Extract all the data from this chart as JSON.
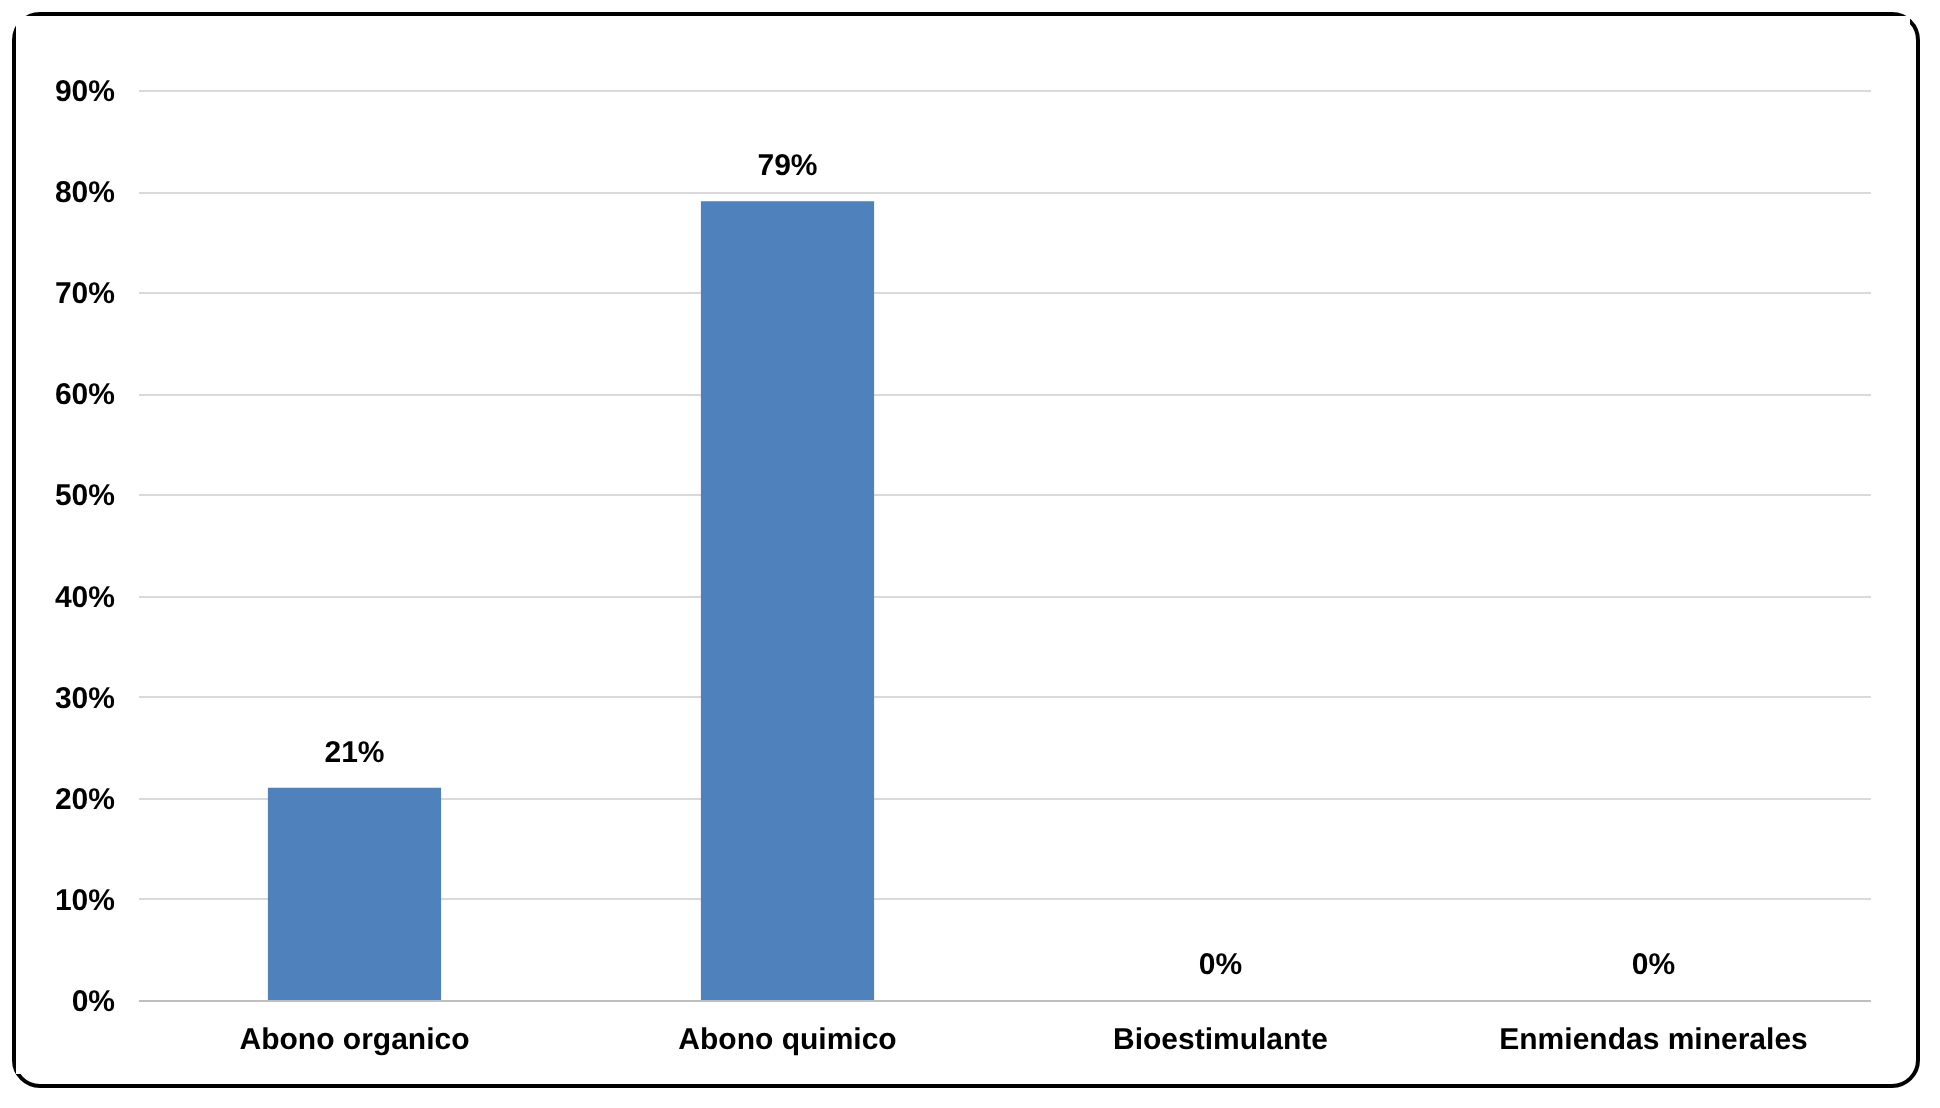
{
  "chart_data": {
    "type": "bar",
    "categories": [
      "Abono organico",
      "Abono quimico",
      "Bioestimulante",
      "Enmiendas minerales"
    ],
    "values": [
      21,
      79,
      0,
      0
    ],
    "color": "#4f81bd",
    "value_labels": [
      "21%",
      "79%",
      "0%",
      "0%"
    ],
    "ylim": [
      0,
      90
    ],
    "yticks": [
      {
        "value": 0,
        "label": "0%"
      },
      {
        "value": 10,
        "label": "10%"
      },
      {
        "value": 20,
        "label": "20%"
      },
      {
        "value": 30,
        "label": "30%"
      },
      {
        "value": 40,
        "label": "40%"
      },
      {
        "value": 50,
        "label": "50%"
      },
      {
        "value": 60,
        "label": "60%"
      },
      {
        "value": 70,
        "label": "70%"
      },
      {
        "value": 80,
        "label": "80%"
      },
      {
        "value": 90,
        "label": "90%"
      }
    ],
    "grid": "y"
  }
}
